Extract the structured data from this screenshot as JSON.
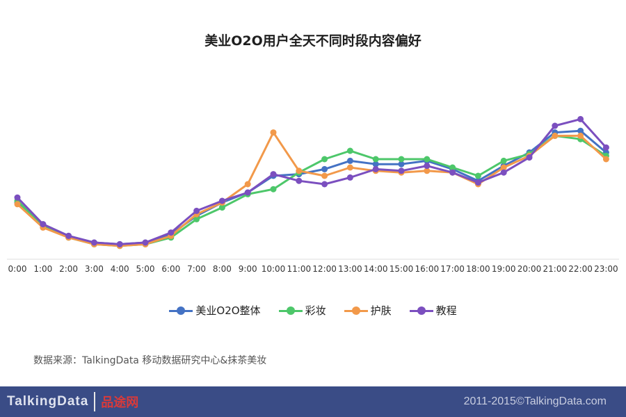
{
  "chart_data": {
    "type": "line",
    "title": "美业O2O用户全天不同时段内容偏好",
    "x": [
      "0:00",
      "1:00",
      "2:00",
      "3:00",
      "4:00",
      "5:00",
      "6:00",
      "7:00",
      "8:00",
      "9:00",
      "10:00",
      "11:00",
      "12:00",
      "13:00",
      "14:00",
      "15:00",
      "16:00",
      "17:00",
      "18:00",
      "19:00",
      "20:00",
      "21:00",
      "22:00",
      "23:00"
    ],
    "series": [
      {
        "name": "美业O2O整体",
        "color": "#4472c4",
        "values": [
          34,
          21,
          14,
          10,
          9,
          10,
          15,
          26,
          34,
          40,
          50,
          51,
          54,
          59,
          57,
          57,
          59,
          54,
          47,
          56,
          64,
          76,
          77,
          64
        ]
      },
      {
        "name": "彩妆",
        "color": "#4dc76a",
        "values": [
          35,
          20,
          13,
          9,
          8,
          9,
          13,
          24,
          31,
          39,
          42,
          52,
          60,
          65,
          60,
          60,
          60,
          55,
          50,
          59,
          63,
          74,
          72,
          62
        ]
      },
      {
        "name": "护肤",
        "color": "#f2994a",
        "values": [
          33,
          19,
          13,
          9,
          8,
          9,
          14,
          27,
          34,
          45,
          76,
          53,
          50,
          55,
          53,
          52,
          53,
          52,
          45,
          55,
          62,
          74,
          74,
          60
        ]
      },
      {
        "name": "教程",
        "color": "#7b4fbf",
        "values": [
          37,
          21,
          14,
          10,
          9,
          10,
          16,
          29,
          35,
          40,
          51,
          47,
          45,
          49,
          54,
          53,
          56,
          52,
          46,
          52,
          61,
          80,
          84,
          67
        ]
      }
    ],
    "source": "数据来源：TalkingData 移动数据研究中心&抹茶美妆",
    "legend": "bottom"
  },
  "footer": {
    "copyright": "2011-2015©TalkingData.com",
    "brand": "TalkingData",
    "watermark": "品途网"
  }
}
